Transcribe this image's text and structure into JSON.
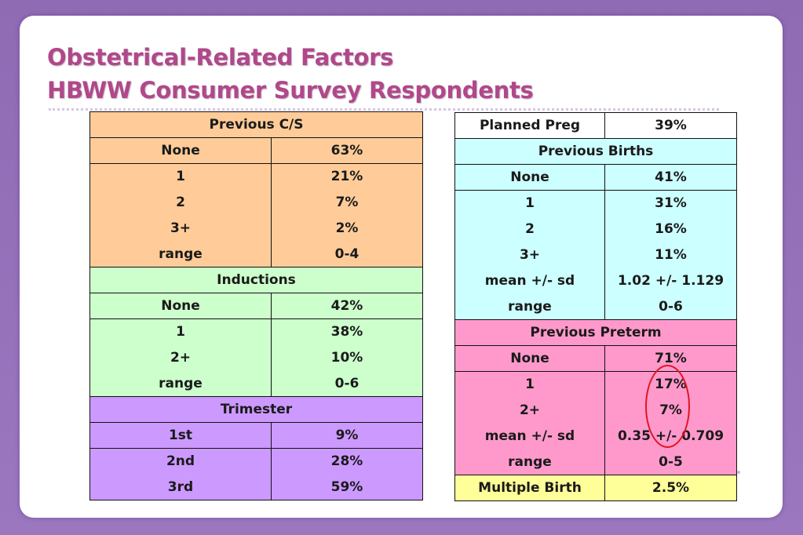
{
  "title": {
    "line1": "Obstetrical-Related Factors",
    "line2": "HBWW Consumer Survey Respondents"
  },
  "left_table": {
    "previous_cs": {
      "header": "Previous C/S",
      "rows": [
        {
          "label": "None",
          "value": "63%"
        },
        {
          "label": "1",
          "value": "21%"
        },
        {
          "label": "2",
          "value": "7%"
        },
        {
          "label": "3+",
          "value": "2%"
        },
        {
          "label": "range",
          "value": "0-4"
        }
      ]
    },
    "inductions": {
      "header": "Inductions",
      "rows": [
        {
          "label": "None",
          "value": "42%"
        },
        {
          "label": "1",
          "value": "38%"
        },
        {
          "label": "2+",
          "value": "10%"
        },
        {
          "label": "range",
          "value": "0-6"
        }
      ]
    },
    "trimester": {
      "header": "Trimester",
      "rows": [
        {
          "label": "1st",
          "value": "9%"
        },
        {
          "label": "2nd",
          "value": "28%"
        },
        {
          "label": "3rd",
          "value": "59%"
        }
      ]
    }
  },
  "right_table": {
    "planned_preg": {
      "label": "Planned Preg",
      "value": "39%"
    },
    "previous_births": {
      "header": "Previous Births",
      "rows": [
        {
          "label": "None",
          "value": "41%"
        },
        {
          "label": "1",
          "value": "31%"
        },
        {
          "label": "2",
          "value": "16%"
        },
        {
          "label": "3+",
          "value": "11%"
        },
        {
          "label": "mean +/- sd",
          "value": "1.02 +/- 1.129"
        },
        {
          "label": "range",
          "value": "0-6"
        }
      ]
    },
    "previous_preterm": {
      "header": "Previous Preterm",
      "rows": [
        {
          "label": "None",
          "value": "71%"
        },
        {
          "label": "1",
          "value": "17%"
        },
        {
          "label": "2+",
          "value": "7%"
        },
        {
          "label": "mean +/- sd",
          "value": "0.35 +/- 0.709"
        },
        {
          "label": "range",
          "value": "0-5"
        }
      ]
    },
    "multiple_birth": {
      "label": "Multiple Birth",
      "value": "2.5%"
    }
  },
  "colors": {
    "background": "#9a77bf",
    "title": "#b0488a",
    "previous_cs": "#ffcc99",
    "inductions": "#ccffcc",
    "trimester": "#cc99ff",
    "previous_births": "#ccffff",
    "previous_preterm": "#ff99cc",
    "multiple_birth": "#ffff99",
    "highlight_oval": "#e0161f"
  }
}
